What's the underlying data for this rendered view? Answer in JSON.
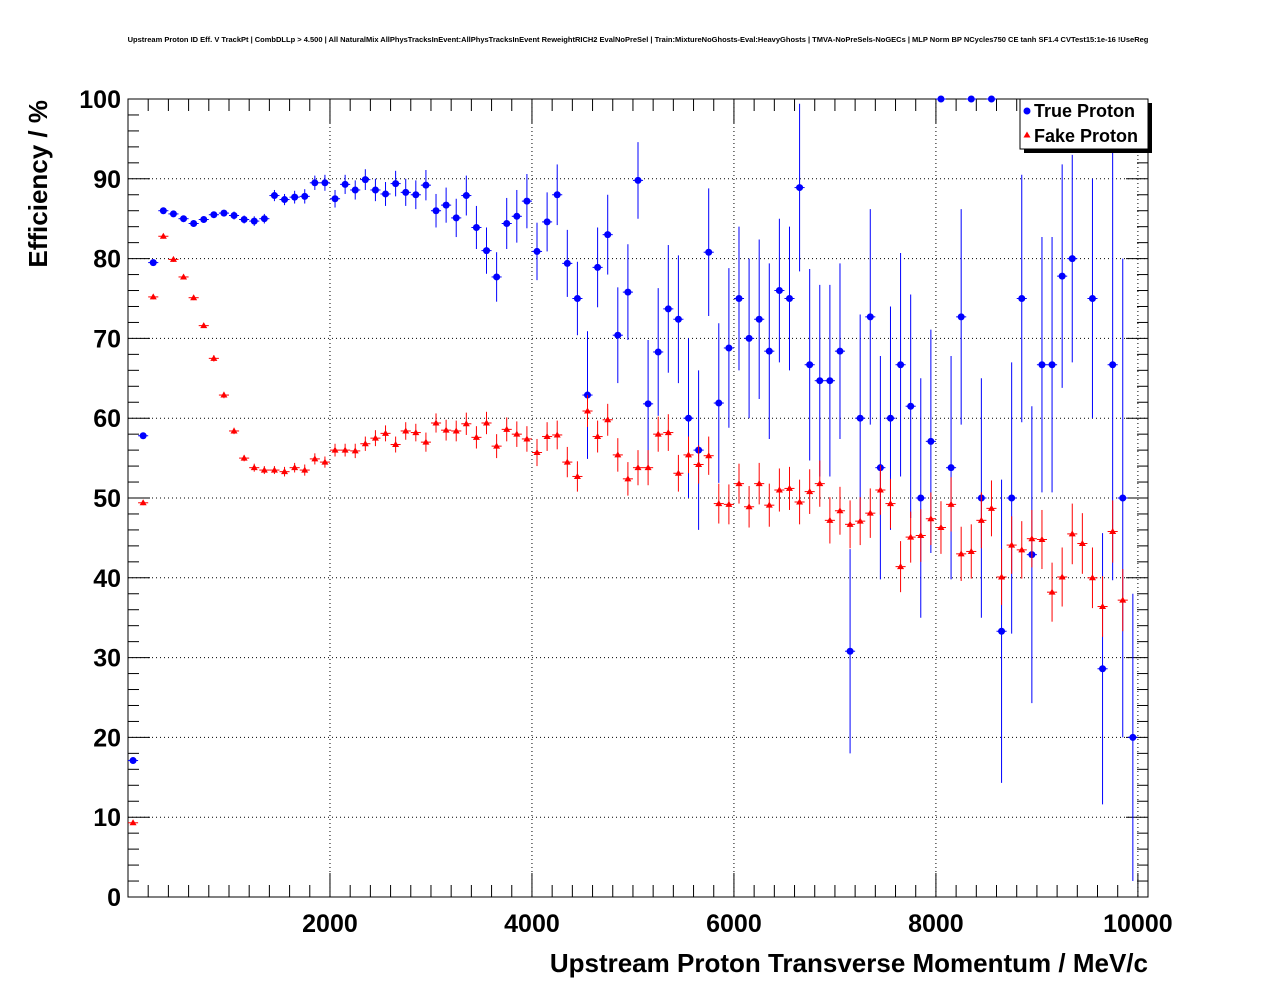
{
  "chart_data": {
    "type": "scatter",
    "title": "Upstream Proton ID Eff. V TrackPt | CombDLLp > 4.500 | All NaturalMix AllPhysTracksInEvent:AllPhysTracksInEvent ReweightRICH2 EvalNoPreSel | Train:MixtureNoGhosts-Eval:HeavyGhosts | TMVA-NoPreSels-NoGECs | MLP Norm BP NCycles750 CE tanh SF1.4 CVTest15:1e-16 !UseReg",
    "xlabel": "Upstream Proton Transverse Momentum / MeV/c",
    "ylabel": "Efficiency / %",
    "xlim": [
      0,
      10100
    ],
    "ylim": [
      0,
      100
    ],
    "x_ticks": [
      2000,
      4000,
      6000,
      8000,
      10000
    ],
    "x_tick_labels": [
      "2000",
      "4000",
      "6000",
      "8000",
      "10000"
    ],
    "y_ticks": [
      0,
      10,
      20,
      30,
      40,
      50,
      60,
      70,
      80,
      90,
      100
    ],
    "y_tick_labels": [
      "0",
      "10",
      "20",
      "30",
      "40",
      "50",
      "60",
      "70",
      "80",
      "90",
      "100"
    ],
    "bin_width": 100,
    "legend_position": "top-right",
    "series": [
      {
        "name": "True Proton",
        "color": "#0000ff",
        "marker": "circle",
        "points": [
          [
            50,
            17.1,
            0.4
          ],
          [
            150,
            57.8,
            0.4
          ],
          [
            250,
            79.5,
            0.4
          ],
          [
            350,
            86.0,
            0.3
          ],
          [
            450,
            85.6,
            0.3
          ],
          [
            550,
            85.0,
            0.4
          ],
          [
            650,
            84.4,
            0.4
          ],
          [
            750,
            84.9,
            0.4
          ],
          [
            850,
            85.5,
            0.4
          ],
          [
            950,
            85.7,
            0.4
          ],
          [
            1050,
            85.4,
            0.5
          ],
          [
            1150,
            84.9,
            0.5
          ],
          [
            1250,
            84.7,
            0.6
          ],
          [
            1350,
            85.0,
            0.6
          ],
          [
            1450,
            87.9,
            0.7
          ],
          [
            1550,
            87.4,
            0.7
          ],
          [
            1650,
            87.7,
            0.8
          ],
          [
            1750,
            87.8,
            0.9
          ],
          [
            1850,
            89.5,
            0.9
          ],
          [
            1950,
            89.5,
            1.0
          ],
          [
            2050,
            87.5,
            1.1
          ],
          [
            2150,
            89.3,
            1.2
          ],
          [
            2250,
            88.6,
            1.2
          ],
          [
            2350,
            89.9,
            1.3
          ],
          [
            2450,
            88.6,
            1.4
          ],
          [
            2550,
            88.1,
            1.5
          ],
          [
            2650,
            89.4,
            1.6
          ],
          [
            2750,
            88.3,
            1.7
          ],
          [
            2850,
            88.0,
            1.8
          ],
          [
            2950,
            89.2,
            1.9
          ],
          [
            3050,
            86.0,
            2.1
          ],
          [
            3150,
            86.7,
            2.2
          ],
          [
            3250,
            85.1,
            2.4
          ],
          [
            3350,
            87.9,
            2.5
          ],
          [
            3450,
            83.9,
            2.7
          ],
          [
            3550,
            81.0,
            2.9
          ],
          [
            3650,
            77.7,
            3.1
          ],
          [
            3750,
            84.4,
            3.2
          ],
          [
            3850,
            85.3,
            3.3
          ],
          [
            3950,
            87.2,
            3.4
          ],
          [
            4050,
            80.9,
            3.6
          ],
          [
            4150,
            84.6,
            3.7
          ],
          [
            4250,
            88.0,
            3.8
          ],
          [
            4350,
            79.4,
            4.2
          ],
          [
            4450,
            75.0,
            4.6
          ],
          [
            4550,
            62.9,
            8.0
          ],
          [
            4650,
            78.9,
            5.0
          ],
          [
            4750,
            83.0,
            5.0
          ],
          [
            4850,
            70.4,
            6.0
          ],
          [
            4950,
            75.8,
            6.0
          ],
          [
            5050,
            89.8,
            4.8
          ],
          [
            5150,
            61.8,
            8.0
          ],
          [
            5250,
            68.3,
            8.0
          ],
          [
            5350,
            73.7,
            8.0
          ],
          [
            5450,
            72.4,
            8.0
          ],
          [
            5550,
            60.0,
            10.0
          ],
          [
            5650,
            56.0,
            10.0
          ],
          [
            5750,
            80.8,
            8.0
          ],
          [
            5850,
            61.9,
            10.0
          ],
          [
            5950,
            68.8,
            10.0
          ],
          [
            6050,
            75.0,
            9.0
          ],
          [
            6150,
            70.0,
            10.0
          ],
          [
            6250,
            72.4,
            10.0
          ],
          [
            6350,
            68.4,
            11.0
          ],
          [
            6450,
            76.0,
            9.0
          ],
          [
            6550,
            75.0,
            9.0
          ],
          [
            6650,
            88.9,
            10.5
          ],
          [
            6750,
            66.7,
            12.0
          ],
          [
            6850,
            64.7,
            12.0
          ],
          [
            6950,
            64.7,
            12.0
          ],
          [
            7050,
            68.4,
            11.0
          ],
          [
            7150,
            30.8,
            12.8
          ],
          [
            7250,
            60.0,
            13.0
          ],
          [
            7350,
            72.7,
            13.5
          ],
          [
            7450,
            53.8,
            14.0
          ],
          [
            7550,
            60.0,
            14.0
          ],
          [
            7650,
            66.7,
            14.0
          ],
          [
            7750,
            61.5,
            14.0
          ],
          [
            7850,
            50.0,
            15.0
          ],
          [
            7950,
            57.1,
            14.0
          ],
          [
            8050,
            100.0,
            0.0
          ],
          [
            8150,
            53.8,
            14.0
          ],
          [
            8250,
            72.7,
            13.5
          ],
          [
            8350,
            100.0,
            0.0
          ],
          [
            8450,
            50.0,
            15.0
          ],
          [
            8550,
            100.0,
            0.0
          ],
          [
            8650,
            33.3,
            19.0
          ],
          [
            8750,
            50.0,
            17.0
          ],
          [
            8850,
            75.0,
            15.5
          ],
          [
            8950,
            42.9,
            18.6
          ],
          [
            9050,
            66.7,
            16.0
          ],
          [
            9150,
            66.7,
            16.0
          ],
          [
            9250,
            77.8,
            14.0
          ],
          [
            9350,
            80.0,
            13.0
          ],
          [
            9550,
            75.0,
            15.0
          ],
          [
            9650,
            28.6,
            17.0
          ],
          [
            9750,
            66.7,
            27.0
          ],
          [
            9850,
            50.0,
            30.0
          ],
          [
            9950,
            20.0,
            18.0
          ]
        ]
      },
      {
        "name": "Fake Proton",
        "color": "#ff0000",
        "marker": "triangle",
        "points": [
          [
            50,
            9.3,
            0.2
          ],
          [
            150,
            49.4,
            0.3
          ],
          [
            250,
            75.2,
            0.3
          ],
          [
            350,
            82.8,
            0.3
          ],
          [
            450,
            79.9,
            0.3
          ],
          [
            550,
            77.7,
            0.3
          ],
          [
            650,
            75.1,
            0.3
          ],
          [
            750,
            71.6,
            0.3
          ],
          [
            850,
            67.5,
            0.4
          ],
          [
            950,
            62.9,
            0.4
          ],
          [
            1050,
            58.4,
            0.4
          ],
          [
            1150,
            55.0,
            0.4
          ],
          [
            1250,
            53.8,
            0.5
          ],
          [
            1350,
            53.5,
            0.5
          ],
          [
            1450,
            53.5,
            0.5
          ],
          [
            1550,
            53.3,
            0.6
          ],
          [
            1650,
            53.8,
            0.6
          ],
          [
            1750,
            53.5,
            0.7
          ],
          [
            1850,
            54.9,
            0.7
          ],
          [
            1950,
            54.5,
            0.7
          ],
          [
            2050,
            56.0,
            0.8
          ],
          [
            2150,
            56.0,
            0.8
          ],
          [
            2250,
            55.9,
            0.9
          ],
          [
            2350,
            56.8,
            0.9
          ],
          [
            2450,
            57.5,
            1.0
          ],
          [
            2550,
            58.1,
            1.0
          ],
          [
            2650,
            56.7,
            1.0
          ],
          [
            2750,
            58.4,
            1.1
          ],
          [
            2850,
            58.2,
            1.1
          ],
          [
            2950,
            57.0,
            1.2
          ],
          [
            3050,
            59.4,
            1.2
          ],
          [
            3150,
            58.5,
            1.3
          ],
          [
            3250,
            58.4,
            1.3
          ],
          [
            3350,
            59.3,
            1.4
          ],
          [
            3450,
            57.6,
            1.4
          ],
          [
            3550,
            59.4,
            1.4
          ],
          [
            3650,
            56.5,
            1.5
          ],
          [
            3750,
            58.6,
            1.5
          ],
          [
            3850,
            58.0,
            1.6
          ],
          [
            3950,
            57.4,
            1.6
          ],
          [
            4050,
            55.7,
            1.7
          ],
          [
            4150,
            57.7,
            1.8
          ],
          [
            4250,
            57.9,
            1.8
          ],
          [
            4350,
            54.5,
            1.9
          ],
          [
            4450,
            52.7,
            1.9
          ],
          [
            4550,
            60.9,
            2.0
          ],
          [
            4650,
            57.7,
            2.0
          ],
          [
            4750,
            59.8,
            2.0
          ],
          [
            4850,
            55.4,
            2.1
          ],
          [
            4950,
            52.4,
            2.1
          ],
          [
            5050,
            53.8,
            2.2
          ],
          [
            5150,
            53.8,
            2.2
          ],
          [
            5250,
            58.0,
            2.2
          ],
          [
            5350,
            58.2,
            2.3
          ],
          [
            5450,
            53.1,
            2.3
          ],
          [
            5550,
            55.4,
            2.3
          ],
          [
            5650,
            54.2,
            2.4
          ],
          [
            5750,
            55.3,
            2.4
          ],
          [
            5850,
            49.3,
            2.5
          ],
          [
            5950,
            49.2,
            2.5
          ],
          [
            6050,
            51.8,
            2.5
          ],
          [
            6150,
            48.9,
            2.6
          ],
          [
            6250,
            51.8,
            2.6
          ],
          [
            6350,
            49.1,
            2.7
          ],
          [
            6450,
            51.0,
            2.7
          ],
          [
            6550,
            51.2,
            2.7
          ],
          [
            6650,
            49.5,
            2.8
          ],
          [
            6750,
            50.8,
            2.8
          ],
          [
            6850,
            51.8,
            2.9
          ],
          [
            6950,
            47.2,
            2.9
          ],
          [
            7050,
            48.4,
            3.0
          ],
          [
            7150,
            46.7,
            3.0
          ],
          [
            7250,
            47.1,
            3.0
          ],
          [
            7350,
            48.1,
            3.1
          ],
          [
            7450,
            51.0,
            3.1
          ],
          [
            7550,
            49.3,
            3.1
          ],
          [
            7650,
            41.4,
            3.2
          ],
          [
            7750,
            45.1,
            3.2
          ],
          [
            7850,
            45.3,
            3.3
          ],
          [
            7950,
            47.4,
            3.3
          ],
          [
            8050,
            46.3,
            3.3
          ],
          [
            8150,
            49.2,
            3.4
          ],
          [
            8250,
            43.0,
            3.4
          ],
          [
            8350,
            43.3,
            3.4
          ],
          [
            8450,
            47.2,
            3.5
          ],
          [
            8550,
            48.7,
            3.5
          ],
          [
            8650,
            40.1,
            3.5
          ],
          [
            8750,
            44.1,
            3.6
          ],
          [
            8850,
            43.5,
            3.6
          ],
          [
            8950,
            44.9,
            3.6
          ],
          [
            9050,
            44.8,
            3.7
          ],
          [
            9150,
            38.2,
            3.7
          ],
          [
            9250,
            40.1,
            3.7
          ],
          [
            9350,
            45.5,
            3.8
          ],
          [
            9450,
            44.3,
            3.8
          ],
          [
            9550,
            40.0,
            3.8
          ],
          [
            9650,
            36.4,
            3.8
          ],
          [
            9750,
            45.8,
            3.9
          ],
          [
            9850,
            37.2,
            3.9
          ]
        ]
      }
    ],
    "legend": [
      {
        "label": "True Proton",
        "color": "#0000ff",
        "marker": "circle"
      },
      {
        "label": "Fake Proton",
        "color": "#ff0000",
        "marker": "triangle"
      }
    ]
  }
}
